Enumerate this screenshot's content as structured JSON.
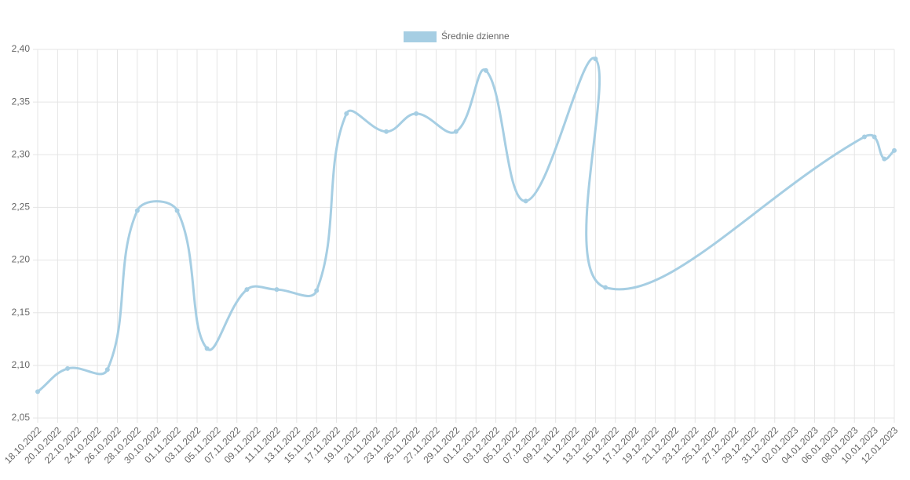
{
  "chart_data": {
    "type": "line",
    "x": [
      "18.10.2022",
      "21.10.2022",
      "25.10.2022",
      "28.10.2022",
      "01.11.2022",
      "04.11.2022",
      "08.11.2022",
      "11.11.2022",
      "15.11.2022",
      "18.11.2022",
      "22.11.2022",
      "25.11.2022",
      "29.11.2022",
      "02.12.2022",
      "06.12.2022",
      "13.12.2022",
      "14.12.2022",
      "09.01.2023",
      "10.01.2023",
      "11.01.2023",
      "12.01.2023"
    ],
    "series": [
      {
        "name": "Średnie dzienne",
        "color": "#a6cee3",
        "values": [
          2.075,
          2.097,
          2.096,
          2.247,
          2.247,
          2.116,
          2.172,
          2.172,
          2.171,
          2.339,
          2.322,
          2.339,
          2.322,
          2.38,
          2.256,
          2.391,
          2.174,
          2.317,
          2.317,
          2.296,
          2.304
        ]
      }
    ],
    "xlim": [
      "18.10.2022",
      "12.01.2023"
    ],
    "xticks": [
      "18.10.2022",
      "20.10.2022",
      "22.10.2022",
      "24.10.2022",
      "26.10.2022",
      "28.10.2022",
      "30.10.2022",
      "01.11.2022",
      "03.11.2022",
      "05.11.2022",
      "07.11.2022",
      "09.11.2022",
      "11.11.2022",
      "13.11.2022",
      "15.11.2022",
      "17.11.2022",
      "19.11.2022",
      "21.11.2022",
      "23.11.2022",
      "25.11.2022",
      "27.11.2022",
      "29.11.2022",
      "01.12.2022",
      "03.12.2022",
      "05.12.2022",
      "07.12.2022",
      "09.12.2022",
      "11.12.2022",
      "13.12.2022",
      "15.12.2022",
      "17.12.2022",
      "19.12.2022",
      "21.12.2022",
      "23.12.2022",
      "25.12.2022",
      "27.12.2022",
      "29.12.2022",
      "31.12.2022",
      "02.01.2023",
      "04.01.2023",
      "06.01.2023",
      "08.01.2023",
      "10.01.2023",
      "12.01.2023"
    ],
    "ylim": [
      2.05,
      2.4
    ],
    "yticks": [
      {
        "value": 2.05,
        "label": "2,05"
      },
      {
        "value": 2.1,
        "label": "2,10"
      },
      {
        "value": 2.15,
        "label": "2,15"
      },
      {
        "value": 2.2,
        "label": "2,20"
      },
      {
        "value": 2.25,
        "label": "2,25"
      },
      {
        "value": 2.3,
        "label": "2,30"
      },
      {
        "value": 2.35,
        "label": "2,35"
      },
      {
        "value": 2.4,
        "label": "2,40"
      }
    ],
    "grid": true,
    "legend": "top"
  }
}
